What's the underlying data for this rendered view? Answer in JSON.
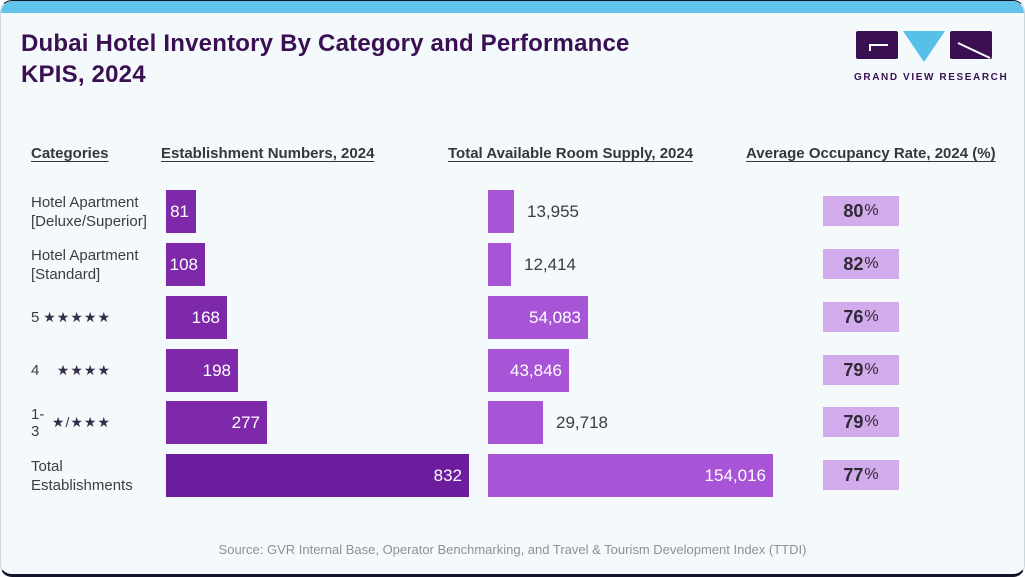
{
  "header": {
    "title_line1": "Dubai Hotel Inventory By Category and Performance",
    "title_line2": "KPIS, 2024",
    "logo_text": "GRAND VIEW RESEARCH"
  },
  "columns": {
    "categories": "Categories",
    "establishments": "Establishment Numbers, 2024",
    "room_supply": "Total Available Room Supply, 2024",
    "occupancy": "Average Occupancy Rate, 2024 (%)"
  },
  "ui": {
    "percent": "%"
  },
  "rows": [
    {
      "category_line1": "Hotel Apartment",
      "category_line2": "[Deluxe/Superior]",
      "establishments": "81",
      "room_supply": "13,955",
      "occupancy": "80"
    },
    {
      "category_line1": "Hotel Apartment",
      "category_line2": "[Standard]",
      "establishments": "108",
      "room_supply": "12,414",
      "occupancy": "82"
    },
    {
      "category_prefix": "5",
      "category_stars": "★★★★★",
      "establishments": "168",
      "room_supply": "54,083",
      "occupancy": "76"
    },
    {
      "category_prefix": "4",
      "category_stars": "★★★★",
      "establishments": "198",
      "room_supply": "43,846",
      "occupancy": "79"
    },
    {
      "category_prefix": "1-3",
      "category_stars": "★/★★★",
      "establishments": "277",
      "room_supply": "29,718",
      "occupancy": "79"
    },
    {
      "category_line1": "Total",
      "category_line2": "Establishments",
      "establishments": "832",
      "room_supply": "154,016",
      "occupancy": "77"
    }
  ],
  "source": "Source: GVR Internal Base, Operator Benchmarking, and Travel & Tourism Development Index (TTDI)",
  "colors": {
    "accent_blue": "#5FC3EA",
    "deep_purple": "#3B1053",
    "bar_establishments": "#7E29AA",
    "bar_establishments_total": "#6B1D9D",
    "bar_room_supply": "#A854D6",
    "badge_occupancy": "#D2ABEC"
  },
  "chart_data": {
    "type": "bar",
    "orientation": "horizontal",
    "title": "Dubai Hotel Inventory By Category and Performance KPIS, 2024",
    "categories": [
      "Hotel Apartment [Deluxe/Superior]",
      "Hotel Apartment [Standard]",
      "5 ★★★★★",
      "4 ★★★★",
      "1-3 ★/★★★",
      "Total Establishments"
    ],
    "series": [
      {
        "name": "Establishment Numbers, 2024",
        "values": [
          81,
          108,
          168,
          198,
          277,
          832
        ]
      },
      {
        "name": "Total Available Room Supply, 2024",
        "values": [
          13955,
          12414,
          54083,
          43846,
          29718,
          154016
        ]
      },
      {
        "name": "Average Occupancy Rate, 2024 (%)",
        "values": [
          80,
          82,
          76,
          79,
          79,
          77
        ]
      }
    ],
    "legend_position": "none",
    "grid": false
  }
}
